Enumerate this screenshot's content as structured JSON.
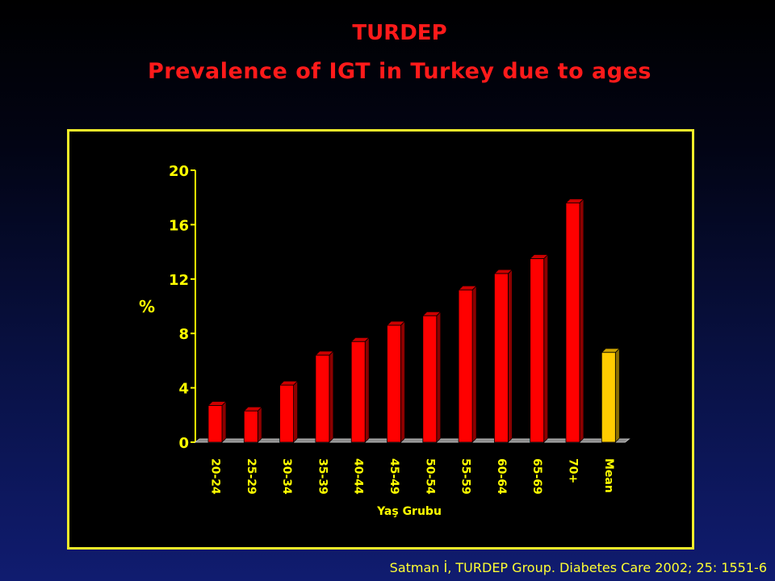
{
  "header": {
    "title": "TURDEP",
    "subtitle": "Prevalence of IGT in Turkey due to ages"
  },
  "citation": "Satman İ, TURDEP Group. Diabetes Care 2002; 25: 1551-6",
  "colors": {
    "bar": "#ff0000",
    "mean_bar": "#ffcc00",
    "frame": "#f2ee2a",
    "text": "#ffff00",
    "title": "#ff1a1a"
  },
  "chart_data": {
    "type": "bar",
    "title": "",
    "xlabel": "Yaş Grubu",
    "ylabel": "%",
    "ylim": [
      0,
      20
    ],
    "yticks": [
      0,
      4,
      8,
      12,
      16,
      20
    ],
    "grid": false,
    "categories": [
      "20-24",
      "25-29",
      "30-34",
      "35-39",
      "40-44",
      "45-49",
      "50-54",
      "55-59",
      "60-64",
      "65-69",
      "70+",
      "Mean"
    ],
    "values": [
      2.7,
      2.3,
      4.2,
      6.4,
      7.4,
      8.6,
      9.3,
      11.2,
      12.4,
      13.5,
      17.6,
      6.6
    ],
    "highlight_category": "Mean"
  }
}
